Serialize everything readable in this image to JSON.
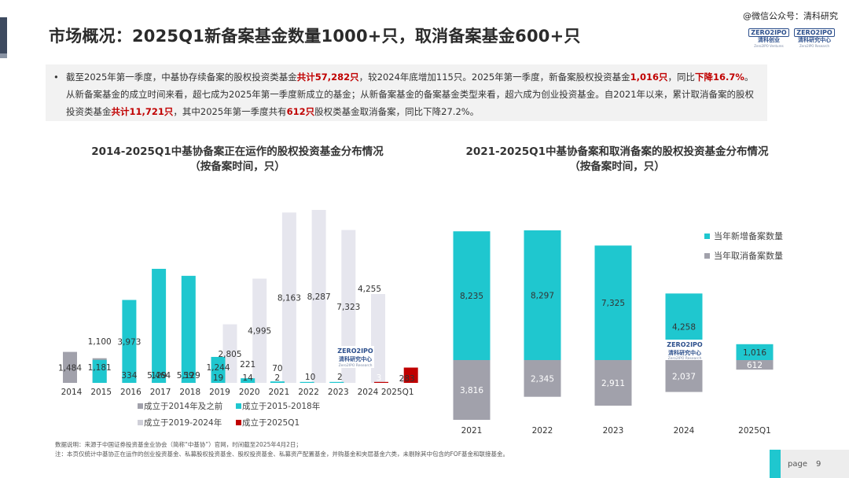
{
  "header": {
    "title": "市场概况：2025Q1新备案基金数量1000+只，取消备案基金600+只",
    "watermark": "@微信公众号：清科研究"
  },
  "logos": {
    "zero2ipo": {
      "top": "ZERO2IPO",
      "mid": "清科创业",
      "bot": "Zero2IPO Ventures"
    },
    "research": {
      "top": "ZERO2IPO",
      "mid": "清科研究中心",
      "bot": "Zero2IPO Research"
    }
  },
  "summary": {
    "bullet": "•",
    "segments": [
      {
        "text": "截至2025年第一季度，中基协存续备案的股权投资类基金",
        "hl": false
      },
      {
        "text": "共计57,282只",
        "hl": true
      },
      {
        "text": "，较2024年底增加115只。2025年第一季度，新备案股权投资基金",
        "hl": false
      },
      {
        "text": "1,016只",
        "hl": true
      },
      {
        "text": "，同比",
        "hl": false
      },
      {
        "text": "下降16.7%",
        "hl": true
      },
      {
        "text": "。从新备案基金的成立时间来看，超七成为2025年第一季度新成立的基金；从新备案基金的备案基金类型来看，超六成为创业投资基金。自2021年以来，累计取消备案的股权投资类基金",
        "hl": false
      },
      {
        "text": "共计11,721只",
        "hl": true
      },
      {
        "text": "，其中2025年第一季度共有",
        "hl": false
      },
      {
        "text": "612只",
        "hl": true
      },
      {
        "text": "股权类基金取消备案，同比下降27.2%。",
        "hl": false
      }
    ]
  },
  "colors": {
    "teal": "#1fc7cf",
    "gray": "#a1a1ab",
    "light": "#e6e6ee",
    "red": "#c00000"
  },
  "chart_data": [
    {
      "type": "bar",
      "title": "2014-2025Q1中基协备案正在运作的股权投资基金分布情况",
      "subtitle": "（按备案时间，只）",
      "categories": [
        "2014",
        "2015",
        "2016",
        "2017",
        "2018",
        "2019",
        "2020",
        "2021",
        "2022",
        "2023",
        "2024",
        "2025Q1"
      ],
      "series": [
        {
          "name": "成立于2014年及之前",
          "color": "#a1a1ab",
          "values": [
            1484,
            1181,
            334,
            129,
            59,
            19,
            14,
            2,
            null,
            null,
            null,
            null
          ]
        },
        {
          "name": "成立于2015-2018年",
          "color": "#1fc7cf",
          "values": [
            null,
            1100,
            3973,
            5464,
            5129,
            1244,
            221,
            70,
            10,
            2,
            null,
            null
          ]
        },
        {
          "name": "成立于2019-2024年",
          "color": "#e6e6ee",
          "values": [
            null,
            null,
            null,
            null,
            null,
            2805,
            4995,
            8163,
            8287,
            7323,
            4255,
            283
          ]
        },
        {
          "name": "成立于2025Q1",
          "color": "#c00000",
          "values": [
            null,
            null,
            null,
            null,
            null,
            null,
            null,
            null,
            null,
            null,
            3,
            733
          ]
        }
      ],
      "legend": "bottom",
      "grid": false,
      "ylim": [
        0,
        8500
      ]
    },
    {
      "type": "bar",
      "title": "2021-2025Q1中基协备案和取消备案的股权投资基金分布情况",
      "subtitle": "（按备案时间，只）",
      "categories": [
        "2021",
        "2022",
        "2023",
        "2024",
        "2025Q1"
      ],
      "series": [
        {
          "name": "当年新增备案数量",
          "color": "#1fc7cf",
          "values": [
            8235,
            8297,
            7325,
            4258,
            1016
          ]
        },
        {
          "name": "当年取消备案数量",
          "color": "#a1a1ab",
          "values": [
            3816,
            2345,
            2911,
            2037,
            612
          ]
        }
      ],
      "legend": "right",
      "grid": false
    }
  ],
  "notes": {
    "line1": "数据说明：来源于中国证券投资基金业协会（简称“中基协”）官网，时间截至2025年4月2日；",
    "line2": "注：本页仅统计中基协正在运作的创业投资基金、私募股权投资基金、股权投资基金、私募资产配置基金，并购基金和夹层基金六类，未剔除其中包含的FOF基金和联接基金。"
  },
  "footer": {
    "page_label": "page",
    "page_number": "9"
  }
}
